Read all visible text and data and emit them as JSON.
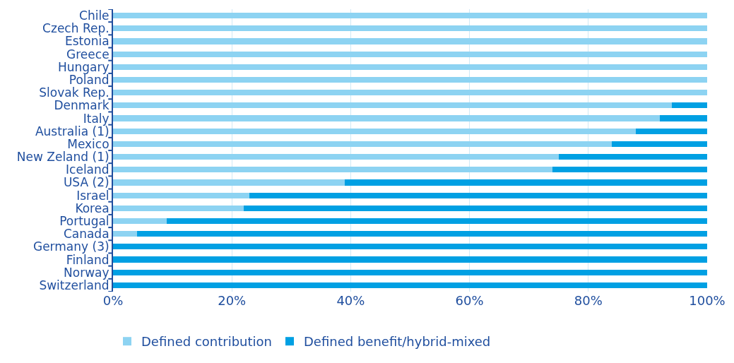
{
  "chart_data": {
    "type": "bar",
    "orientation": "horizontal",
    "stacked": true,
    "categories": [
      "Chile",
      "Czech Rep.",
      "Estonia",
      "Greece",
      "Hungary",
      "Poland",
      "Slovak Rep.",
      "Denmark",
      "Italy",
      "Australia (1)",
      "Mexico",
      "New Zeland (1)",
      "Iceland",
      "USA (2)",
      "Israel",
      "Korea",
      "Portugal",
      "Canada",
      "Germany (3)",
      "Finland",
      "Norway",
      "Switzerland"
    ],
    "series": [
      {
        "name": "Defined contribution",
        "color": "#8dd3f2",
        "values": [
          100,
          100,
          100,
          100,
          100,
          100,
          100,
          94,
          92,
          88,
          84,
          75,
          74,
          39,
          23,
          22,
          9,
          4,
          0,
          0,
          0,
          0
        ]
      },
      {
        "name": "Defined benefit/hybrid-mixed",
        "color": "#00a0e3",
        "values": [
          0,
          0,
          0,
          0,
          0,
          0,
          0,
          6,
          8,
          12,
          16,
          25,
          26,
          61,
          77,
          78,
          91,
          96,
          100,
          100,
          100,
          100
        ]
      }
    ],
    "xlim": [
      0,
      100
    ],
    "xticks": [
      {
        "value": 0,
        "label": "0%"
      },
      {
        "value": 20,
        "label": "20%"
      },
      {
        "value": 40,
        "label": "40%"
      },
      {
        "value": 60,
        "label": "60%"
      },
      {
        "value": 80,
        "label": "80%"
      },
      {
        "value": 100,
        "label": "100%"
      }
    ],
    "grid": "x",
    "legend": "bottom"
  }
}
